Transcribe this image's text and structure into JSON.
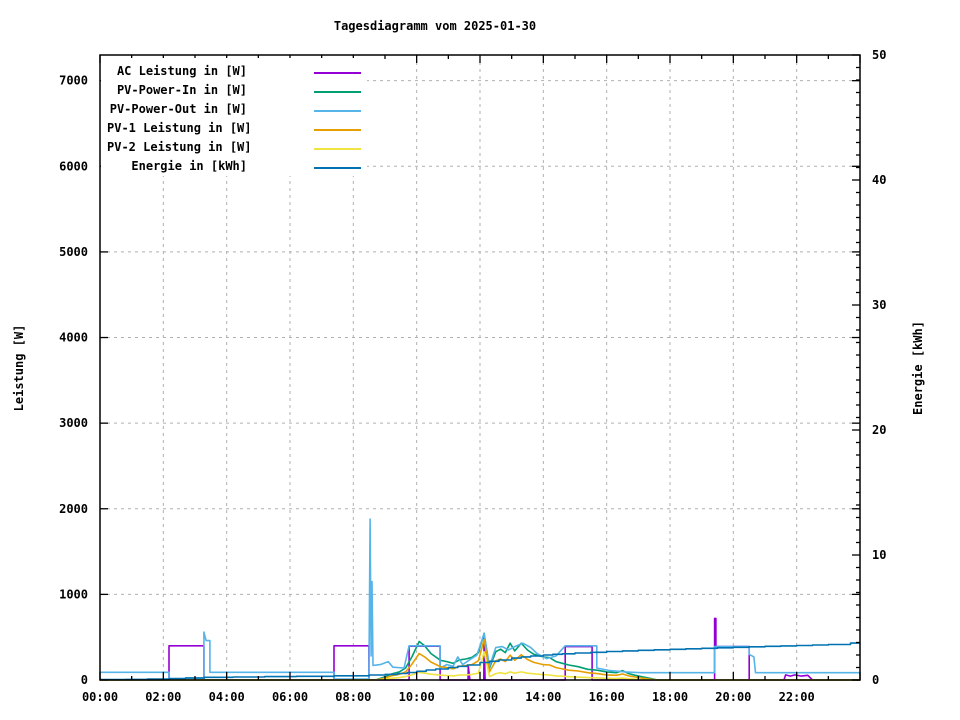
{
  "title": "Tagesdiagramm vom 2025-01-30",
  "axes": {
    "x": {
      "tick_labels": [
        "00:00",
        "02:00",
        "04:00",
        "06:00",
        "08:00",
        "10:00",
        "12:00",
        "14:00",
        "16:00",
        "18:00",
        "20:00",
        "22:00"
      ],
      "tick_hours": [
        0,
        2,
        4,
        6,
        8,
        10,
        12,
        14,
        16,
        18,
        20,
        22
      ],
      "minor_hour_step": 1,
      "range_hours": [
        0,
        24
      ]
    },
    "y_left": {
      "label": "Leistung [W]",
      "tick_values": [
        0,
        1000,
        2000,
        3000,
        4000,
        5000,
        6000,
        7000
      ],
      "tick_labels": [
        "0",
        "1000",
        "2000",
        "3000",
        "4000",
        "5000",
        "6000",
        "7000"
      ],
      "range": [
        0,
        7300
      ],
      "grid_step": 1000
    },
    "y_right": {
      "label": "Energie [kWh]",
      "tick_values": [
        0,
        10,
        20,
        30,
        40,
        50
      ],
      "tick_labels": [
        "0",
        "10",
        "20",
        "30",
        "40",
        "50"
      ],
      "minor_step": 1,
      "range": [
        0,
        50
      ]
    }
  },
  "legend": {
    "items": [
      {
        "label": "AC Leistung in [W]",
        "color": "#9400d3"
      },
      {
        "label": "PV-Power-In in [W]",
        "color": "#009e73"
      },
      {
        "label": "PV-Power-Out in [W]",
        "color": "#56b4e9"
      },
      {
        "label": "PV-1 Leistung in [W]",
        "color": "#e69f00"
      },
      {
        "label": "PV-2 Leistung in [W]",
        "color": "#f0e442"
      },
      {
        "label": "Energie in [kWh]",
        "color": "#0072b2"
      }
    ]
  },
  "colors": {
    "background": "#ffffff",
    "axis": "#000000",
    "grid": "#b0b0b0"
  },
  "chart_data": {
    "type": "line",
    "x_unit": "decimal_hours",
    "grid": true,
    "legend_position": "top-left-inside",
    "series": [
      {
        "id": "ac-leistung",
        "name": "AC Leistung in [W]",
        "color": "#9400d3",
        "axis": "left",
        "interp": "linear",
        "points": [
          [
            0,
            0
          ],
          [
            2.18,
            0
          ],
          [
            2.18,
            400
          ],
          [
            3.28,
            400
          ],
          [
            3.28,
            0
          ],
          [
            7.39,
            0
          ],
          [
            7.39,
            400
          ],
          [
            8.49,
            400
          ],
          [
            8.49,
            0
          ],
          [
            9.76,
            0
          ],
          [
            9.76,
            395
          ],
          [
            10.74,
            395
          ],
          [
            10.74,
            0
          ],
          [
            11.62,
            0
          ],
          [
            11.63,
            160
          ],
          [
            11.68,
            0
          ],
          [
            12.12,
            0
          ],
          [
            12.13,
            510
          ],
          [
            12.16,
            0
          ],
          [
            14.69,
            0
          ],
          [
            14.69,
            390
          ],
          [
            15.54,
            390
          ],
          [
            15.54,
            0
          ],
          [
            19.41,
            0
          ],
          [
            19.41,
            720
          ],
          [
            19.45,
            720
          ],
          [
            19.45,
            390
          ],
          [
            20.5,
            390
          ],
          [
            20.5,
            0
          ],
          [
            21.6,
            0
          ],
          [
            21.65,
            60
          ],
          [
            21.8,
            45
          ],
          [
            21.95,
            60
          ],
          [
            22.15,
            45
          ],
          [
            22.35,
            55
          ],
          [
            22.5,
            0
          ],
          [
            24,
            0
          ]
        ]
      },
      {
        "id": "pv-power-in",
        "name": "PV-Power-In in [W]",
        "color": "#009e73",
        "axis": "left",
        "interp": "linear",
        "points": [
          [
            0,
            0
          ],
          [
            8.7,
            0
          ],
          [
            8.95,
            30
          ],
          [
            9.2,
            70
          ],
          [
            9.45,
            95
          ],
          [
            9.65,
            140
          ],
          [
            9.85,
            270
          ],
          [
            10.08,
            450
          ],
          [
            10.25,
            400
          ],
          [
            10.45,
            310
          ],
          [
            10.75,
            230
          ],
          [
            10.95,
            215
          ],
          [
            11.15,
            195
          ],
          [
            11.35,
            235
          ],
          [
            11.55,
            245
          ],
          [
            11.75,
            265
          ],
          [
            11.95,
            320
          ],
          [
            12.13,
            545
          ],
          [
            12.3,
            140
          ],
          [
            12.5,
            330
          ],
          [
            12.65,
            360
          ],
          [
            12.8,
            320
          ],
          [
            12.95,
            430
          ],
          [
            13.1,
            340
          ],
          [
            13.3,
            430
          ],
          [
            13.5,
            350
          ],
          [
            13.7,
            300
          ],
          [
            14,
            270
          ],
          [
            14.2,
            260
          ],
          [
            14.4,
            215
          ],
          [
            14.6,
            195
          ],
          [
            14.8,
            175
          ],
          [
            15.1,
            155
          ],
          [
            15.4,
            125
          ],
          [
            15.7,
            115
          ],
          [
            16,
            95
          ],
          [
            16.3,
            85
          ],
          [
            16.5,
            110
          ],
          [
            16.7,
            75
          ],
          [
            16.9,
            55
          ],
          [
            17.1,
            40
          ],
          [
            17.4,
            18
          ],
          [
            17.6,
            0
          ],
          [
            24,
            0
          ]
        ]
      },
      {
        "id": "pv-power-out",
        "name": "PV-Power-Out in [W]",
        "color": "#56b4e9",
        "axis": "left",
        "interp": "linear",
        "points": [
          [
            0,
            90
          ],
          [
            2.18,
            90
          ],
          [
            2.18,
            10
          ],
          [
            3.28,
            10
          ],
          [
            3.28,
            560
          ],
          [
            3.35,
            460
          ],
          [
            3.47,
            460
          ],
          [
            3.47,
            90
          ],
          [
            7.39,
            90
          ],
          [
            7.39,
            10
          ],
          [
            8.49,
            10
          ],
          [
            8.53,
            1880
          ],
          [
            8.56,
            280
          ],
          [
            8.59,
            1150
          ],
          [
            8.62,
            170
          ],
          [
            8.85,
            180
          ],
          [
            9.1,
            215
          ],
          [
            9.25,
            150
          ],
          [
            9.6,
            140
          ],
          [
            9.76,
            400
          ],
          [
            10.74,
            400
          ],
          [
            10.74,
            140
          ],
          [
            10.95,
            180
          ],
          [
            11.15,
            160
          ],
          [
            11.3,
            270
          ],
          [
            11.45,
            180
          ],
          [
            11.65,
            230
          ],
          [
            11.9,
            290
          ],
          [
            12.13,
            540
          ],
          [
            12.3,
            160
          ],
          [
            12.5,
            380
          ],
          [
            12.7,
            390
          ],
          [
            12.9,
            350
          ],
          [
            13.1,
            390
          ],
          [
            13.35,
            430
          ],
          [
            13.6,
            380
          ],
          [
            13.8,
            310
          ],
          [
            14.1,
            250
          ],
          [
            14.4,
            280
          ],
          [
            14.69,
            400
          ],
          [
            15.69,
            400
          ],
          [
            15.69,
            140
          ],
          [
            16.1,
            110
          ],
          [
            16.6,
            95
          ],
          [
            17.1,
            85
          ],
          [
            17.6,
            85
          ],
          [
            19.41,
            85
          ],
          [
            19.41,
            390
          ],
          [
            20.5,
            390
          ],
          [
            20.5,
            300
          ],
          [
            20.65,
            270
          ],
          [
            20.7,
            85
          ],
          [
            24,
            85
          ]
        ]
      },
      {
        "id": "pv1-leistung",
        "name": "PV-1 Leistung in [W]",
        "color": "#e69f00",
        "axis": "left",
        "interp": "linear",
        "points": [
          [
            0,
            0
          ],
          [
            8.7,
            0
          ],
          [
            8.95,
            18
          ],
          [
            9.2,
            48
          ],
          [
            9.45,
            65
          ],
          [
            9.65,
            95
          ],
          [
            9.85,
            185
          ],
          [
            10.08,
            310
          ],
          [
            10.25,
            270
          ],
          [
            10.45,
            210
          ],
          [
            10.75,
            155
          ],
          [
            10.95,
            145
          ],
          [
            11.15,
            130
          ],
          [
            11.35,
            160
          ],
          [
            11.55,
            168
          ],
          [
            11.75,
            180
          ],
          [
            11.95,
            225
          ],
          [
            12.13,
            470
          ],
          [
            12.3,
            95
          ],
          [
            12.5,
            225
          ],
          [
            12.65,
            245
          ],
          [
            12.8,
            215
          ],
          [
            12.95,
            290
          ],
          [
            13.1,
            230
          ],
          [
            13.3,
            295
          ],
          [
            13.5,
            240
          ],
          [
            13.7,
            205
          ],
          [
            14,
            180
          ],
          [
            14.2,
            175
          ],
          [
            14.4,
            145
          ],
          [
            14.6,
            130
          ],
          [
            14.8,
            115
          ],
          [
            15.1,
            105
          ],
          [
            15.4,
            85
          ],
          [
            15.7,
            75
          ],
          [
            16,
            60
          ],
          [
            16.3,
            55
          ],
          [
            16.5,
            70
          ],
          [
            16.7,
            48
          ],
          [
            16.9,
            35
          ],
          [
            17.1,
            22
          ],
          [
            17.4,
            8
          ],
          [
            17.6,
            0
          ],
          [
            24,
            0
          ]
        ]
      },
      {
        "id": "pv2-leistung",
        "name": "PV-2 Leistung in [W]",
        "color": "#f0e442",
        "axis": "left",
        "interp": "linear",
        "points": [
          [
            0,
            0
          ],
          [
            8.7,
            0
          ],
          [
            8.95,
            8
          ],
          [
            9.2,
            20
          ],
          [
            9.45,
            28
          ],
          [
            9.65,
            40
          ],
          [
            9.85,
            60
          ],
          [
            10.08,
            90
          ],
          [
            10.25,
            80
          ],
          [
            10.45,
            68
          ],
          [
            10.75,
            56
          ],
          [
            10.95,
            52
          ],
          [
            11.15,
            48
          ],
          [
            11.35,
            58
          ],
          [
            11.55,
            60
          ],
          [
            11.75,
            65
          ],
          [
            11.95,
            80
          ],
          [
            12.13,
            330
          ],
          [
            12.3,
            40
          ],
          [
            12.5,
            75
          ],
          [
            12.65,
            85
          ],
          [
            12.8,
            72
          ],
          [
            12.95,
            95
          ],
          [
            13.1,
            80
          ],
          [
            13.3,
            95
          ],
          [
            13.5,
            80
          ],
          [
            13.7,
            72
          ],
          [
            14,
            62
          ],
          [
            14.2,
            58
          ],
          [
            14.4,
            48
          ],
          [
            14.6,
            44
          ],
          [
            14.8,
            38
          ],
          [
            15.1,
            34
          ],
          [
            15.4,
            28
          ],
          [
            15.7,
            24
          ],
          [
            16,
            20
          ],
          [
            16.3,
            16
          ],
          [
            16.5,
            22
          ],
          [
            16.7,
            14
          ],
          [
            16.9,
            9
          ],
          [
            17.1,
            5
          ],
          [
            17.4,
            2
          ],
          [
            17.6,
            0
          ],
          [
            24,
            0
          ]
        ]
      },
      {
        "id": "energie",
        "name": "Energie in [kWh]",
        "color": "#0072b2",
        "axis": "right",
        "interp": "step",
        "points": [
          [
            0,
            0.03
          ],
          [
            0.8,
            0.05
          ],
          [
            1.5,
            0.08
          ],
          [
            2.2,
            0.12
          ],
          [
            2.7,
            0.17
          ],
          [
            3.3,
            0.22
          ],
          [
            4.2,
            0.24
          ],
          [
            5.2,
            0.27
          ],
          [
            6.2,
            0.3
          ],
          [
            7.4,
            0.34
          ],
          [
            8.5,
            0.4
          ],
          [
            9,
            0.45
          ],
          [
            9.4,
            0.52
          ],
          [
            9.7,
            0.6
          ],
          [
            10,
            0.7
          ],
          [
            10.3,
            0.8
          ],
          [
            10.6,
            0.88
          ],
          [
            11,
            1.0
          ],
          [
            11.3,
            1.1
          ],
          [
            11.6,
            1.2
          ],
          [
            12,
            1.4
          ],
          [
            12.3,
            1.5
          ],
          [
            12.6,
            1.6
          ],
          [
            13,
            1.75
          ],
          [
            13.3,
            1.85
          ],
          [
            13.6,
            1.92
          ],
          [
            14,
            2.0
          ],
          [
            14.3,
            2.06
          ],
          [
            14.6,
            2.1
          ],
          [
            15,
            2.16
          ],
          [
            15.5,
            2.22
          ],
          [
            16,
            2.28
          ],
          [
            16.5,
            2.33
          ],
          [
            17,
            2.38
          ],
          [
            17.5,
            2.42
          ],
          [
            18,
            2.46
          ],
          [
            18.5,
            2.5
          ],
          [
            19,
            2.54
          ],
          [
            19.5,
            2.58
          ],
          [
            20,
            2.62
          ],
          [
            20.5,
            2.66
          ],
          [
            21,
            2.7
          ],
          [
            21.5,
            2.73
          ],
          [
            22,
            2.76
          ],
          [
            22.5,
            2.8
          ],
          [
            23,
            2.84
          ],
          [
            23.7,
            2.95
          ],
          [
            24,
            2.96
          ]
        ]
      }
    ]
  }
}
